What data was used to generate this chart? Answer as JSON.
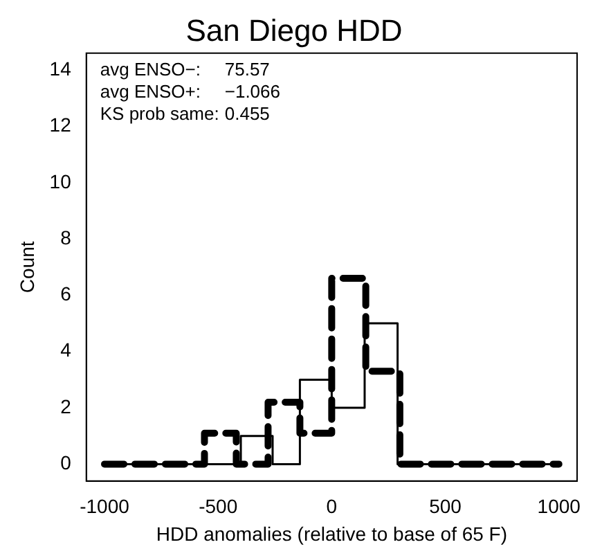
{
  "chart_data": {
    "type": "step",
    "title": "San Diego HDD",
    "xlabel": "HDD anomalies (relative to base of 65 F)",
    "ylabel": "Count",
    "series": [
      {
        "color": "#000000",
        "line_style": "solid",
        "x": [
          -1000,
          -400,
          -260,
          -140,
          0,
          145,
          290,
          1000
        ],
        "values": [
          0,
          1,
          0,
          3,
          2,
          5,
          0,
          0
        ]
      },
      {
        "color": "#000000",
        "line_style": "dashed",
        "x": [
          -1000,
          -560,
          -420,
          -280,
          -140,
          0,
          150,
          300,
          1000
        ],
        "values": [
          0,
          1.1,
          0,
          2.2,
          1.1,
          6.6,
          3.3,
          0,
          0
        ]
      }
    ],
    "xlim": [
      -1080,
      1080
    ],
    "xticks": [
      -1000,
      -500,
      0,
      500,
      1000
    ],
    "ylim": [
      -0.6,
      14.6
    ],
    "yticks": [
      0,
      2,
      4,
      6,
      8,
      10,
      12,
      14
    ],
    "annotations": [
      "avg ENSO−:    75.57",
      "avg ENSO+:    −1.066",
      "KS prob same:  0.455"
    ],
    "grid": false,
    "legend": false
  }
}
